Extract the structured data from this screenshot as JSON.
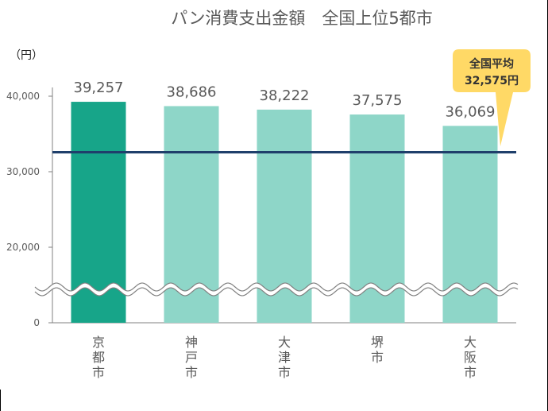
{
  "chart_data": {
    "type": "bar",
    "title": "パン消費支出金額　全国上位5都市",
    "unit_label": "（円）",
    "categories": [
      "京都市",
      "神戸市",
      "大津市",
      "堺市",
      "大阪市"
    ],
    "values": [
      39257,
      38686,
      38222,
      37575,
      36069
    ],
    "value_labels": [
      "39,257",
      "38,686",
      "38,222",
      "37,575",
      "36,069"
    ],
    "y_ticks": [
      {
        "value": 0,
        "label": "0"
      },
      {
        "value": 20000,
        "label": "20,000"
      },
      {
        "value": 30000,
        "label": "30,000"
      },
      {
        "value": 40000,
        "label": "40,000"
      }
    ],
    "axis_break": {
      "from": 0,
      "to": 20000
    },
    "average": {
      "value": 32575,
      "label_line1": "全国平均",
      "label_line2": "32,575円"
    },
    "highlight_index": 0,
    "grid": false,
    "colors": {
      "highlight_bar": "#17A589",
      "bar": "#8ED6C8",
      "average_line": "#1F3F6B",
      "callout": "#FFD966",
      "text": "#595959",
      "axis": "#808080"
    }
  }
}
